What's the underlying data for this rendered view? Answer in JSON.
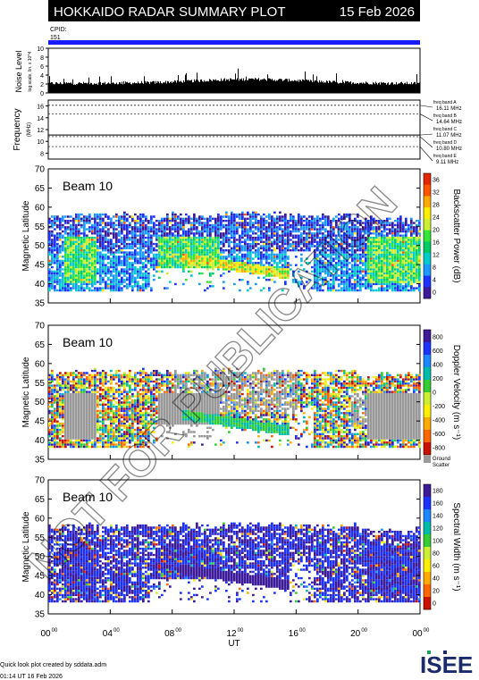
{
  "header": {
    "title": "HOKKAIDO RADAR SUMMARY PLOT",
    "date": "15 Feb 2026",
    "cpid_label": "CPID:",
    "cpid_value": "151",
    "bar_color": "#1a1aff"
  },
  "watermark": "NOT FOR PUBLICATION",
  "noise_panel": {
    "ylabel": "Noise Level",
    "ysub": "log scale, lin. x 10^4",
    "yticks": [
      "0",
      "2",
      "4",
      "6",
      "8",
      "10"
    ]
  },
  "freq_panel": {
    "ylabel": "Frequency",
    "yunit": "(MHz)",
    "yticks": [
      "8",
      "10",
      "12",
      "14",
      "16"
    ],
    "bands": [
      {
        "name": "freq band A",
        "value": "16.11 MHz",
        "mhz": 16.11
      },
      {
        "name": "freq band B",
        "value": "14.64 MHz",
        "mhz": 14.64
      },
      {
        "name": "freq band C",
        "value": "11.07 MHz",
        "mhz": 11.07
      },
      {
        "name": "freq band D",
        "value": "10.80 MHz",
        "mhz": 10.8
      },
      {
        "name": "freq band E",
        "value": "9.11 MHz",
        "mhz": 9.11
      }
    ]
  },
  "panels": [
    {
      "key": "power",
      "beam": "Beam 10",
      "ylabel": "Magnetic Latitude",
      "cbar_label": "Backscatter Power (dB)",
      "cbar_ticks": [
        "0",
        "4",
        "8",
        "12",
        "16",
        "20",
        "24",
        "28",
        "32",
        "36"
      ]
    },
    {
      "key": "velocity",
      "beam": "Beam 10",
      "ylabel": "Magnetic Latitude",
      "cbar_label": "Doppler Velocity (m s⁻¹)",
      "cbar_ticks": [
        "-800",
        "-600",
        "-400",
        "-200",
        "0",
        "200",
        "400",
        "600",
        "800"
      ],
      "ground_label": "Ground",
      "ground_label2": "Scatter"
    },
    {
      "key": "width",
      "beam": "Beam 10",
      "ylabel": "Magnetic Latitude",
      "cbar_label": "Spectral Width (m s⁻¹)",
      "cbar_ticks": [
        "0",
        "20",
        "40",
        "60",
        "80",
        "100",
        "120",
        "140",
        "160",
        "180"
      ]
    }
  ],
  "lat_ticks": [
    "35",
    "40",
    "45",
    "50",
    "55",
    "60",
    "65",
    "70"
  ],
  "x_ticks": [
    "00",
    "04",
    "08",
    "12",
    "16",
    "20",
    "00"
  ],
  "x_tick_sup": "00",
  "xlabel": "UT",
  "footer": {
    "credit": "Quick look plot created by sddata.adm",
    "timestamp": "01:14 UT 16 Feb 2026",
    "logo": "ISEE"
  },
  "colors": {
    "power_scale": [
      "#3d1a99",
      "#1a33ff",
      "#1a99ff",
      "#00cccc",
      "#00cc66",
      "#33e633",
      "#ccee33",
      "#ffee00",
      "#ffaa00",
      "#ff5500",
      "#e62600"
    ],
    "velocity_scale": [
      "#cc1100",
      "#ff6600",
      "#ffaa00",
      "#ffee00",
      "#ccee33",
      "#33cc33",
      "#00bbaa",
      "#1a88ff",
      "#1a33ff",
      "#3d1a99"
    ],
    "ground": "#999999"
  },
  "chart_data": {
    "type": "heatmap",
    "x_range_ut_hours": [
      0,
      24
    ],
    "lat_range": [
      35,
      70
    ],
    "scatter_extent_lat": [
      38,
      58
    ],
    "noise_range": [
      0,
      10
    ],
    "freq_range": [
      7,
      17
    ]
  }
}
